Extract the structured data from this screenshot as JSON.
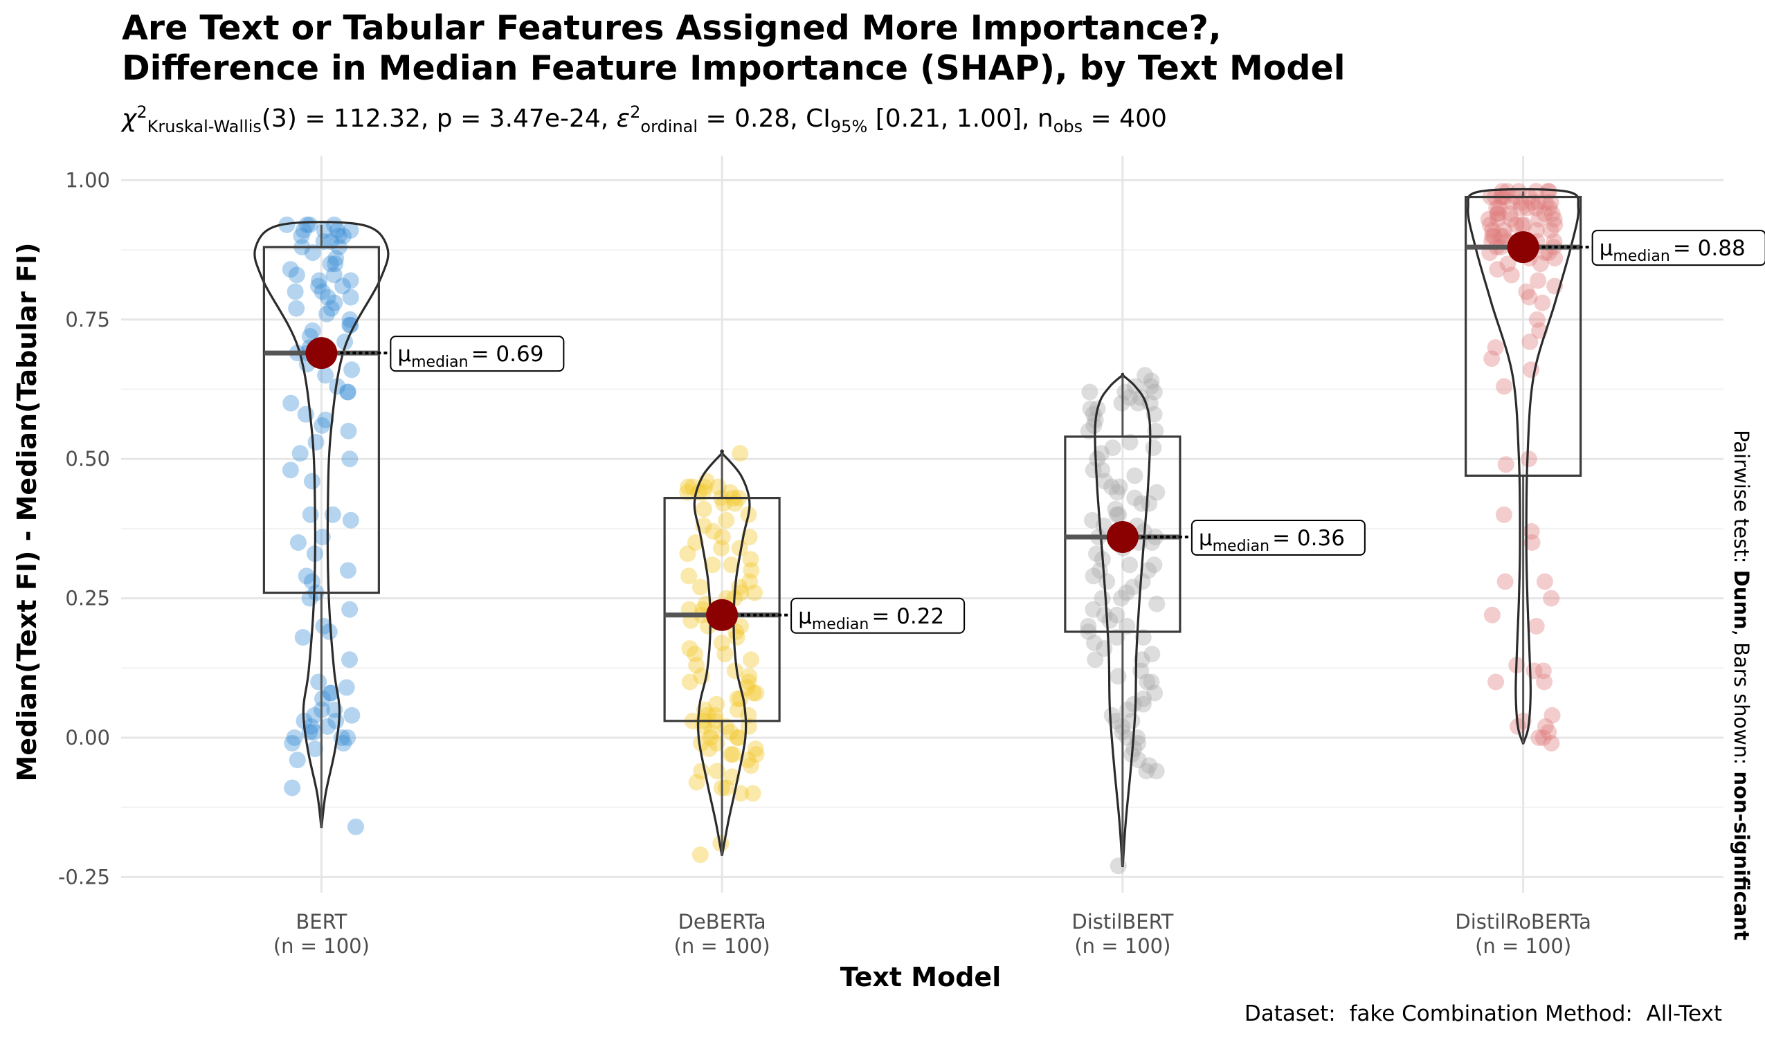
{
  "title_line1": "Are Text or Tabular Features Assigned More Importance?,",
  "title_line2": "Difference in Median Feature Importance (SHAP), by Text Model",
  "subtitle": {
    "chi_symbol": "χ",
    "chi_sup": "2",
    "chi_sub": "Kruskal-Wallis",
    "stat_text": "(3) = 112.32, p = 3.47e-24, ",
    "eps_symbol": "ε",
    "eps_sup": "2",
    "eps_sub": "ordinal",
    "eps_text": " = 0.28, CI",
    "ci_sub": "95%",
    "ci_text": " [0.21, 1.00], n",
    "n_sub": "obs",
    "n_text": " = 400"
  },
  "side_label": {
    "prefix": "Pairwise test: ",
    "test": "Dunn",
    "middle": ", Bars shown: ",
    "bars": "non-significant"
  },
  "caption": "Dataset:  fake Combination Method:  All-Text",
  "colors": {
    "BERT": "#3a8fd6",
    "DeBERTa": "#f2c623",
    "DistilBERT": "#a6a6a6",
    "DistilRoBERTa": "#e07b7b",
    "median_point": "#8b0000"
  },
  "chart_data": {
    "type": "violin-box-jitter",
    "xlabel": "Text Model",
    "ylabel": "Median(Text FI) - Median(Tabular FI)",
    "ylim": [
      -0.28,
      1.04
    ],
    "yticks": [
      -0.25,
      0.0,
      0.25,
      0.5,
      0.75,
      1.0
    ],
    "ytick_labels": [
      "-0.25",
      "0.00",
      "0.25",
      "0.50",
      "0.75",
      "1.00"
    ],
    "grid": true,
    "median_label_prefix": "μ",
    "median_label_sub": "median",
    "groups": [
      {
        "name": "BERT",
        "n_label": "(n = 100)",
        "median": 0.69,
        "median_label": "= 0.69",
        "q1": 0.26,
        "q3": 0.88,
        "min": -0.16,
        "max": 0.92,
        "violin": [
          [
            -0.16,
            0.002
          ],
          [
            -0.1,
            0.04
          ],
          [
            -0.02,
            0.13
          ],
          [
            0.05,
            0.17
          ],
          [
            0.12,
            0.12
          ],
          [
            0.25,
            0.07
          ],
          [
            0.4,
            0.06
          ],
          [
            0.55,
            0.09
          ],
          [
            0.7,
            0.22
          ],
          [
            0.82,
            0.55
          ],
          [
            0.88,
            0.62
          ],
          [
            0.92,
            0.38
          ]
        ],
        "points": [
          0.92,
          0.91,
          0.92,
          0.9,
          0.91,
          0.89,
          0.92,
          0.9,
          0.88,
          0.91,
          0.92,
          0.89,
          0.9,
          0.91,
          0.87,
          0.86,
          0.85,
          0.84,
          0.83,
          0.82,
          0.82,
          0.81,
          0.8,
          0.8,
          0.79,
          0.78,
          0.77,
          0.76,
          0.75,
          0.74,
          0.73,
          0.72,
          0.71,
          0.7,
          0.69,
          0.69,
          0.68,
          0.67,
          0.66,
          0.65,
          0.63,
          0.62,
          0.6,
          0.58,
          0.57,
          0.56,
          0.53,
          0.51,
          0.5,
          0.48,
          0.46,
          0.4,
          0.4,
          0.39,
          0.36,
          0.35,
          0.33,
          0.29,
          0.28,
          0.26,
          0.25,
          0.2,
          0.19,
          0.18,
          0.14,
          0.1,
          0.09,
          0.08,
          0.08,
          0.07,
          0.05,
          0.05,
          0.04,
          0.04,
          0.03,
          0.03,
          0.02,
          0.02,
          0.01,
          0.01,
          0.0,
          0.0,
          0.0,
          -0.01,
          -0.01,
          -0.02,
          -0.04,
          -0.09,
          -0.16,
          0.88,
          0.85,
          0.83,
          0.81,
          0.79,
          0.77,
          0.74,
          0.62,
          0.55,
          0.3,
          0.23
        ]
      },
      {
        "name": "DeBERTa",
        "n_label": "(n = 100)",
        "median": 0.22,
        "median_label": "= 0.22",
        "q1": 0.03,
        "q3": 0.43,
        "min": -0.21,
        "max": 0.51,
        "violin": [
          [
            -0.21,
            0.002
          ],
          [
            -0.15,
            0.06
          ],
          [
            -0.08,
            0.14
          ],
          [
            0.0,
            0.22
          ],
          [
            0.06,
            0.21
          ],
          [
            0.12,
            0.14
          ],
          [
            0.2,
            0.11
          ],
          [
            0.28,
            0.13
          ],
          [
            0.36,
            0.2
          ],
          [
            0.42,
            0.26
          ],
          [
            0.47,
            0.18
          ],
          [
            0.51,
            0.002
          ]
        ],
        "points": [
          0.51,
          0.46,
          0.45,
          0.45,
          0.45,
          0.44,
          0.44,
          0.44,
          0.43,
          0.43,
          0.42,
          0.41,
          0.4,
          0.38,
          0.37,
          0.36,
          0.35,
          0.34,
          0.33,
          0.32,
          0.31,
          0.3,
          0.29,
          0.28,
          0.27,
          0.26,
          0.25,
          0.25,
          0.24,
          0.23,
          0.22,
          0.22,
          0.21,
          0.2,
          0.19,
          0.18,
          0.17,
          0.16,
          0.15,
          0.14,
          0.13,
          0.12,
          0.11,
          0.1,
          0.1,
          0.09,
          0.08,
          0.08,
          0.07,
          0.06,
          0.05,
          0.05,
          0.04,
          0.04,
          0.03,
          0.03,
          0.02,
          0.02,
          0.01,
          0.01,
          0.0,
          0.0,
          0.0,
          -0.01,
          -0.01,
          -0.02,
          -0.02,
          -0.03,
          -0.03,
          -0.04,
          -0.05,
          -0.06,
          -0.07,
          -0.08,
          -0.09,
          -0.09,
          -0.1,
          -0.1,
          -0.19,
          -0.21,
          0.45,
          0.44,
          0.43,
          0.42,
          0.39,
          0.36,
          0.34,
          0.31,
          0.27,
          0.23,
          0.2,
          0.15,
          0.11,
          0.07,
          0.04,
          0.02,
          -0.03,
          -0.06,
          0.03,
          0.26
        ]
      },
      {
        "name": "DistilBERT",
        "n_label": "(n = 100)",
        "median": 0.36,
        "median_label": "= 0.36",
        "q1": 0.19,
        "q3": 0.54,
        "min": -0.23,
        "max": 0.65,
        "violin": [
          [
            -0.23,
            0.002
          ],
          [
            -0.15,
            0.03
          ],
          [
            -0.05,
            0.08
          ],
          [
            0.05,
            0.12
          ],
          [
            0.15,
            0.13
          ],
          [
            0.25,
            0.16
          ],
          [
            0.35,
            0.2
          ],
          [
            0.45,
            0.24
          ],
          [
            0.55,
            0.26
          ],
          [
            0.6,
            0.22
          ],
          [
            0.63,
            0.12
          ],
          [
            0.65,
            0.002
          ]
        ],
        "points": [
          0.65,
          0.64,
          0.63,
          0.63,
          0.62,
          0.62,
          0.61,
          0.61,
          0.6,
          0.6,
          0.59,
          0.59,
          0.58,
          0.57,
          0.56,
          0.55,
          0.53,
          0.52,
          0.51,
          0.5,
          0.48,
          0.47,
          0.46,
          0.45,
          0.44,
          0.44,
          0.43,
          0.42,
          0.41,
          0.4,
          0.39,
          0.38,
          0.37,
          0.36,
          0.36,
          0.35,
          0.34,
          0.33,
          0.32,
          0.31,
          0.3,
          0.29,
          0.28,
          0.27,
          0.26,
          0.25,
          0.24,
          0.23,
          0.22,
          0.21,
          0.2,
          0.19,
          0.18,
          0.17,
          0.16,
          0.15,
          0.14,
          0.12,
          0.11,
          0.1,
          0.08,
          0.07,
          0.06,
          0.05,
          0.04,
          0.03,
          0.02,
          0.01,
          0.0,
          -0.01,
          -0.02,
          -0.03,
          -0.04,
          -0.05,
          -0.06,
          -0.06,
          -0.23,
          0.6,
          0.58,
          0.55,
          0.52,
          0.48,
          0.45,
          0.42,
          0.38,
          0.35,
          0.31,
          0.28,
          0.25,
          0.22,
          0.18,
          0.14,
          0.1,
          0.06,
          0.03,
          0.0,
          0.62,
          0.4,
          0.3,
          0.2
        ]
      },
      {
        "name": "DistilRoBERTa",
        "n_label": "(n = 100)",
        "median": 0.88,
        "median_label": "= 0.88",
        "q1": 0.47,
        "q3": 0.97,
        "min": -0.01,
        "max": 0.98,
        "violin": [
          [
            -0.01,
            0.002
          ],
          [
            0.02,
            0.05
          ],
          [
            0.08,
            0.07
          ],
          [
            0.15,
            0.06
          ],
          [
            0.25,
            0.04
          ],
          [
            0.35,
            0.03
          ],
          [
            0.5,
            0.04
          ],
          [
            0.65,
            0.1
          ],
          [
            0.78,
            0.3
          ],
          [
            0.88,
            0.45
          ],
          [
            0.95,
            0.52
          ],
          [
            0.98,
            0.4
          ]
        ],
        "points": [
          0.98,
          0.98,
          0.98,
          0.98,
          0.97,
          0.97,
          0.97,
          0.97,
          0.96,
          0.96,
          0.96,
          0.95,
          0.95,
          0.95,
          0.94,
          0.94,
          0.93,
          0.93,
          0.92,
          0.92,
          0.91,
          0.91,
          0.9,
          0.9,
          0.89,
          0.89,
          0.88,
          0.88,
          0.88,
          0.87,
          0.87,
          0.86,
          0.85,
          0.84,
          0.83,
          0.82,
          0.81,
          0.8,
          0.79,
          0.78,
          0.75,
          0.73,
          0.71,
          0.7,
          0.68,
          0.66,
          0.63,
          0.5,
          0.49,
          0.4,
          0.37,
          0.35,
          0.28,
          0.28,
          0.25,
          0.22,
          0.2,
          0.13,
          0.12,
          0.12,
          0.1,
          0.1,
          0.04,
          0.03,
          0.02,
          0.02,
          0.01,
          0.0,
          0.0,
          -0.01,
          0.98,
          0.97,
          0.96,
          0.95,
          0.94,
          0.93,
          0.92,
          0.91,
          0.9,
          0.89,
          0.88,
          0.87,
          0.86,
          0.85,
          0.98,
          0.97,
          0.96,
          0.95,
          0.94,
          0.93,
          0.92,
          0.91,
          0.9,
          0.89,
          0.97,
          0.96,
          0.95,
          0.94,
          0.93,
          0.92
        ]
      }
    ]
  }
}
